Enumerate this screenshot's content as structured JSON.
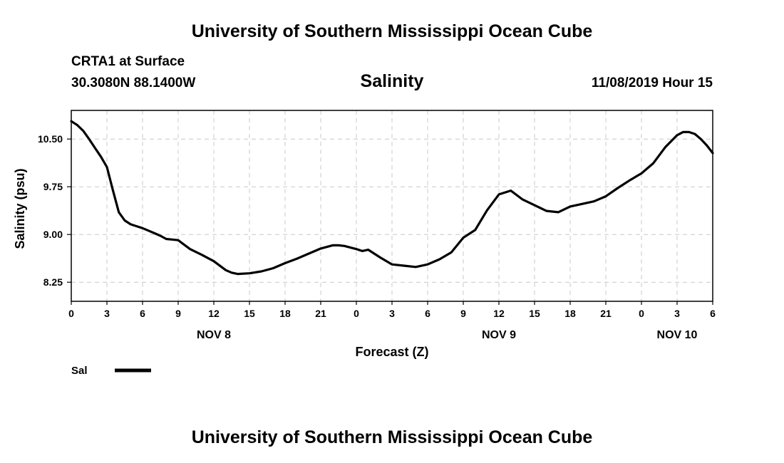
{
  "header": {
    "title": "University of Southern Mississippi Ocean Cube",
    "station": "CRTA1 at Surface",
    "coords": "30.3080N 88.1400W",
    "forecast_time": "11/08/2019 Hour 15"
  },
  "footer": {
    "title": "University of Southern Mississippi Ocean Cube"
  },
  "chart_data": {
    "type": "line",
    "title": "Salinity",
    "xlabel": "Forecast (Z)",
    "ylabel": "Salinity (psu)",
    "xlim": [
      0,
      54
    ],
    "ylim": [
      7.95,
      10.95
    ],
    "grid": true,
    "x_ticks": [
      0,
      3,
      6,
      9,
      12,
      15,
      18,
      21,
      24,
      27,
      30,
      33,
      36,
      39,
      42,
      45,
      48,
      51,
      54
    ],
    "x_tick_labels": [
      "0",
      "3",
      "6",
      "9",
      "12",
      "15",
      "18",
      "21",
      "0",
      "3",
      "6",
      "9",
      "12",
      "15",
      "18",
      "21",
      "0",
      "3",
      "6"
    ],
    "y_ticks": [
      8.25,
      9.0,
      9.75,
      10.5
    ],
    "y_tick_labels": [
      "8.25",
      "9.00",
      "9.75",
      "10.50"
    ],
    "date_labels": [
      {
        "x": 12,
        "label": "NOV 8"
      },
      {
        "x": 36,
        "label": "NOV 9"
      },
      {
        "x": 51,
        "label": "NOV 10"
      }
    ],
    "legend": {
      "label": "Sal",
      "color": "#000000",
      "placement": "bottom-left"
    },
    "series": [
      {
        "name": "Sal",
        "color": "#000000",
        "x": [
          0,
          0.5,
          1,
          1.5,
          2,
          2.5,
          3,
          3.5,
          4,
          4.5,
          5,
          5.5,
          6,
          6.5,
          7,
          7.5,
          8,
          8.5,
          9,
          10,
          11,
          12,
          13,
          13.5,
          14,
          15,
          16,
          17,
          18,
          19,
          20,
          21,
          22,
          22.5,
          23,
          24,
          24.5,
          25,
          26,
          27,
          28,
          29,
          30,
          31,
          32,
          33,
          34,
          35,
          36,
          37,
          38,
          39,
          40,
          41,
          42,
          43,
          44,
          45,
          46,
          47,
          48,
          49,
          50,
          51,
          51.5,
          52,
          52.5,
          53,
          53.5,
          54
        ],
        "values": [
          10.78,
          10.72,
          10.63,
          10.5,
          10.36,
          10.22,
          10.06,
          9.7,
          9.35,
          9.22,
          9.16,
          9.13,
          9.1,
          9.06,
          9.02,
          8.98,
          8.93,
          8.92,
          8.91,
          8.77,
          8.68,
          8.58,
          8.44,
          8.4,
          8.38,
          8.39,
          8.42,
          8.47,
          8.55,
          8.62,
          8.7,
          8.78,
          8.83,
          8.83,
          8.82,
          8.77,
          8.74,
          8.76,
          8.64,
          8.53,
          8.51,
          8.49,
          8.53,
          8.61,
          8.72,
          8.95,
          9.07,
          9.38,
          9.63,
          9.69,
          9.55,
          9.46,
          9.37,
          9.35,
          9.44,
          9.48,
          9.52,
          9.6,
          9.73,
          9.85,
          9.96,
          10.12,
          10.37,
          10.56,
          10.61,
          10.61,
          10.58,
          10.5,
          10.4,
          10.28
        ]
      }
    ]
  }
}
